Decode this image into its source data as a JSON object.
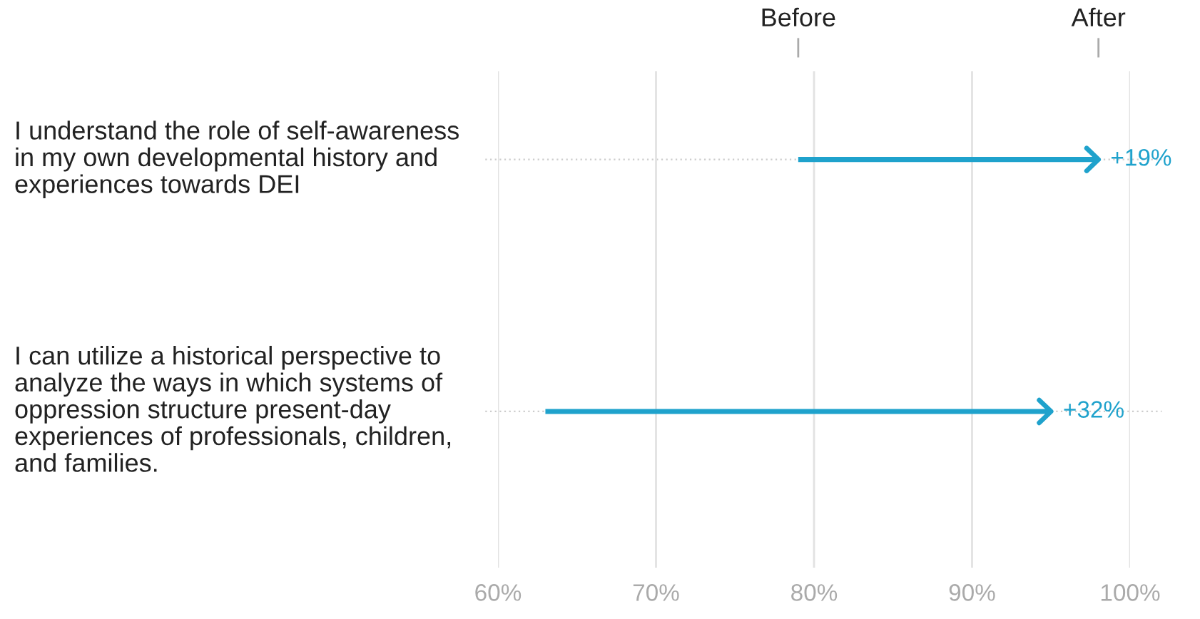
{
  "chart_data": {
    "type": "bar",
    "orientation": "horizontal",
    "categories": [
      "I understand the role of self-awareness in my own developmental history and experiences towards DEI",
      "I can utilize a historical perspective to analyze the ways in which systems of oppression structure present-day experiences of professionals, children, and families."
    ],
    "base": [
      79,
      63
    ],
    "values": [
      19,
      32
    ],
    "value_labels": [
      "+19%",
      "+32%"
    ],
    "color": "#1fa2cc",
    "xlim": [
      60,
      100
    ],
    "xticks": [
      {
        "value": 60,
        "label": "60%"
      },
      {
        "value": 70,
        "label": "70%"
      },
      {
        "value": 80,
        "label": "80%"
      },
      {
        "value": 90,
        "label": "90%"
      },
      {
        "value": 100,
        "label": "100%"
      }
    ],
    "annotations": [
      "Before",
      "After"
    ],
    "grid": true
  }
}
